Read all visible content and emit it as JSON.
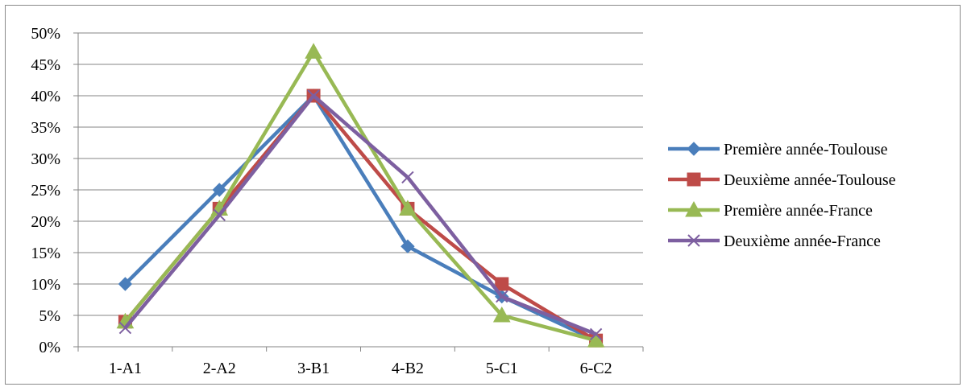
{
  "chart_data": {
    "type": "line",
    "title": "",
    "xlabel": "",
    "ylabel": "",
    "categories": [
      "1-A1",
      "2-A2",
      "3-B1",
      "4-B2",
      "5-C1",
      "6-C2"
    ],
    "ylim": [
      0,
      0.5
    ],
    "yticks": [
      {
        "value": 0,
        "label": "0%"
      },
      {
        "value": 0.05,
        "label": "5%"
      },
      {
        "value": 0.1,
        "label": "10%"
      },
      {
        "value": 0.15,
        "label": "15%"
      },
      {
        "value": 0.2,
        "label": "20%"
      },
      {
        "value": 0.25,
        "label": "25%"
      },
      {
        "value": 0.3,
        "label": "30%"
      },
      {
        "value": 0.35,
        "label": "35%"
      },
      {
        "value": 0.4,
        "label": "40%"
      },
      {
        "value": 0.45,
        "label": "45%"
      },
      {
        "value": 0.5,
        "label": "50%"
      }
    ],
    "grid": true,
    "legend_position": "right",
    "series": [
      {
        "name": "Première année-Toulouse",
        "color": "#4a7ebb",
        "marker": "diamond",
        "values": [
          0.1,
          0.25,
          0.4,
          0.16,
          0.08,
          0.01
        ]
      },
      {
        "name": "Deuxième année-Toulouse",
        "color": "#be4b48",
        "marker": "square",
        "values": [
          0.04,
          0.22,
          0.4,
          0.22,
          0.1,
          0.01
        ]
      },
      {
        "name": "Première année-France",
        "color": "#98b954",
        "marker": "triangle",
        "values": [
          0.04,
          0.22,
          0.47,
          0.22,
          0.05,
          0.01
        ]
      },
      {
        "name": "Deuxième année-France",
        "color": "#7d5fa0",
        "marker": "x",
        "values": [
          0.03,
          0.21,
          0.4,
          0.27,
          0.08,
          0.02
        ]
      }
    ]
  }
}
